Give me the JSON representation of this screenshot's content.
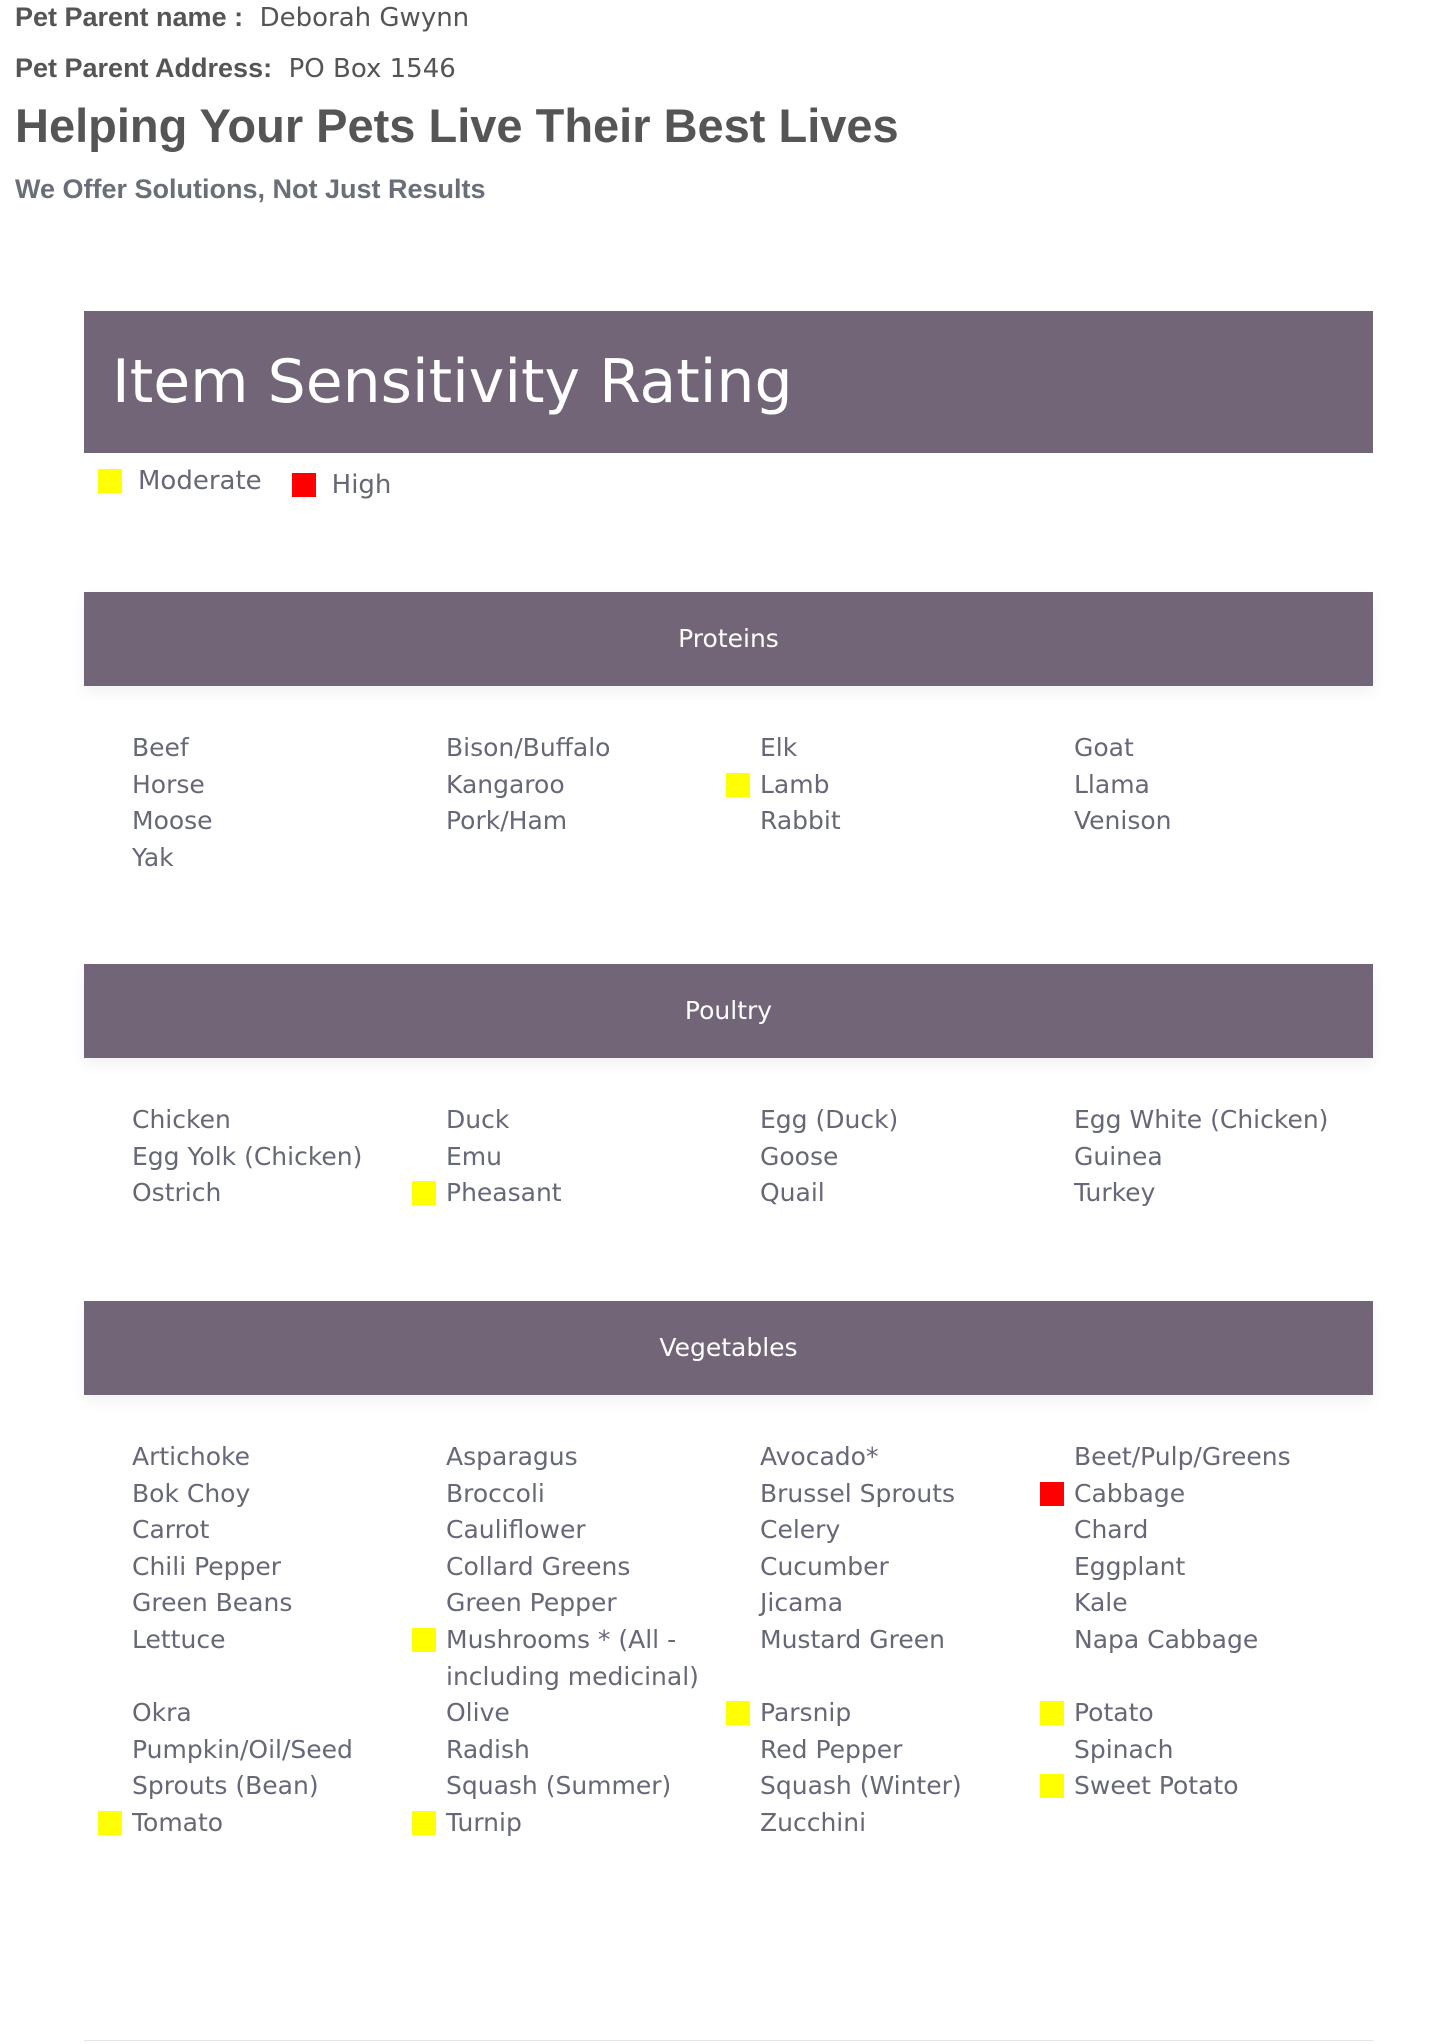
{
  "header": {
    "name_label": "Pet Parent name :",
    "name": "Deborah Gwynn",
    "address_label": "Pet Parent Address:",
    "address": "PO Box 1546",
    "title": "Helping Your Pets Live Their Best Lives",
    "subtitle": "We Offer Solutions, Not Just Results"
  },
  "banner_title": "Item Sensitivity Rating",
  "legend": [
    {
      "label": "Moderate",
      "color": "#ffff00"
    },
    {
      "label": "High",
      "color": "#ff0000"
    }
  ],
  "sections": [
    {
      "title": "Proteins",
      "items": [
        {
          "name": "Beef"
        },
        {
          "name": "Bison/Buffalo"
        },
        {
          "name": "Elk"
        },
        {
          "name": "Goat"
        },
        {
          "name": "Horse"
        },
        {
          "name": "Kangaroo"
        },
        {
          "name": "Lamb",
          "rating": "Moderate"
        },
        {
          "name": "Llama"
        },
        {
          "name": "Moose"
        },
        {
          "name": "Pork/Ham"
        },
        {
          "name": "Rabbit"
        },
        {
          "name": "Venison"
        },
        {
          "name": "Yak"
        }
      ]
    },
    {
      "title": "Poultry",
      "items": [
        {
          "name": "Chicken"
        },
        {
          "name": "Duck"
        },
        {
          "name": "Egg (Duck)"
        },
        {
          "name": "Egg White (Chicken)"
        },
        {
          "name": "Egg Yolk (Chicken)"
        },
        {
          "name": "Emu"
        },
        {
          "name": "Goose"
        },
        {
          "name": "Guinea"
        },
        {
          "name": "Ostrich"
        },
        {
          "name": "Pheasant",
          "rating": "Moderate"
        },
        {
          "name": "Quail"
        },
        {
          "name": "Turkey"
        }
      ]
    },
    {
      "title": "Vegetables",
      "items": [
        {
          "name": "Artichoke"
        },
        {
          "name": "Asparagus"
        },
        {
          "name": "Avocado*"
        },
        {
          "name": "Beet/Pulp/Greens"
        },
        {
          "name": "Bok Choy"
        },
        {
          "name": "Broccoli"
        },
        {
          "name": "Brussel Sprouts"
        },
        {
          "name": "Cabbage",
          "rating": "High"
        },
        {
          "name": "Carrot"
        },
        {
          "name": "Cauliflower"
        },
        {
          "name": "Celery"
        },
        {
          "name": "Chard"
        },
        {
          "name": "Chili Pepper"
        },
        {
          "name": "Collard Greens"
        },
        {
          "name": "Cucumber"
        },
        {
          "name": "Eggplant"
        },
        {
          "name": "Green Beans"
        },
        {
          "name": "Green Pepper"
        },
        {
          "name": "Jicama"
        },
        {
          "name": "Kale"
        },
        {
          "name": "Lettuce"
        },
        {
          "name": "Mushrooms * (All - including medicinal)",
          "rating": "Moderate"
        },
        {
          "name": "Mustard Green"
        },
        {
          "name": "Napa Cabbage"
        },
        {
          "name": "Okra"
        },
        {
          "name": "Olive"
        },
        {
          "name": "Parsnip",
          "rating": "Moderate"
        },
        {
          "name": "Potato",
          "rating": "Moderate"
        },
        {
          "name": "Pumpkin/Oil/Seed"
        },
        {
          "name": "Radish"
        },
        {
          "name": "Red Pepper"
        },
        {
          "name": "Spinach"
        },
        {
          "name": "Sprouts (Bean)"
        },
        {
          "name": "Squash (Summer)"
        },
        {
          "name": "Squash (Winter)"
        },
        {
          "name": "Sweet Potato",
          "rating": "Moderate"
        },
        {
          "name": "Tomato",
          "rating": "Moderate"
        },
        {
          "name": "Turnip",
          "rating": "Moderate"
        },
        {
          "name": "Zucchini"
        }
      ]
    }
  ]
}
